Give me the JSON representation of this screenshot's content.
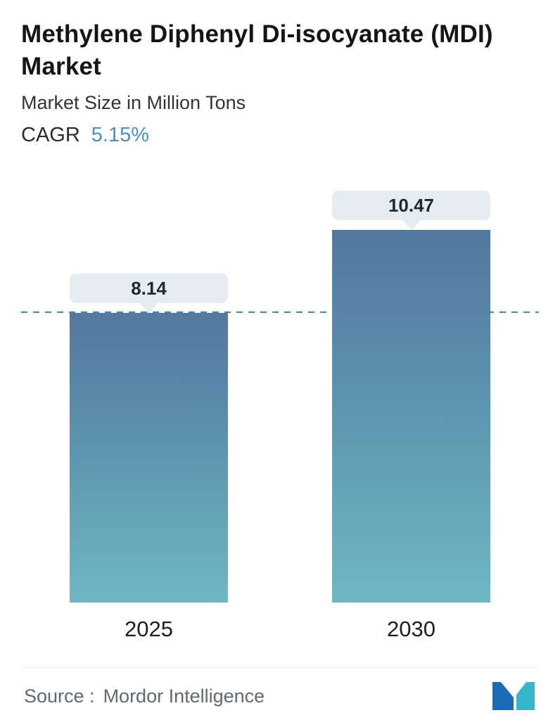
{
  "header": {
    "title": "Methylene Diphenyl Di-isocyanate (MDI) Market",
    "subtitle": "Market Size in Million Tons",
    "cagr_label": "CAGR",
    "cagr_value": "5.15%"
  },
  "chart_data": {
    "type": "bar",
    "title": "Methylene Diphenyl Di-isocyanate (MDI) Market",
    "subtitle": "Market Size in Million Tons",
    "unit": "Million Tons",
    "cagr_percent": 5.15,
    "categories": [
      "2025",
      "2030"
    ],
    "values": [
      8.14,
      10.47
    ],
    "value_labels": [
      "8.14",
      "10.47"
    ],
    "reference_line_value": 8.14,
    "ylim": [
      0,
      10.47
    ],
    "grid": false,
    "legend": false
  },
  "footer": {
    "source_label": "Source :",
    "source_value": "Mordor Intelligence"
  },
  "colors": {
    "bar_gradient_top": "#54789e",
    "bar_gradient_bottom": "#6fb7c3",
    "cagr_accent": "#4a90c2",
    "dashed_line": "#4d82aa",
    "tooltip_bg": "#e6edf0",
    "logo_blue": "#1b6cb5",
    "logo_teal": "#35b6c9"
  }
}
